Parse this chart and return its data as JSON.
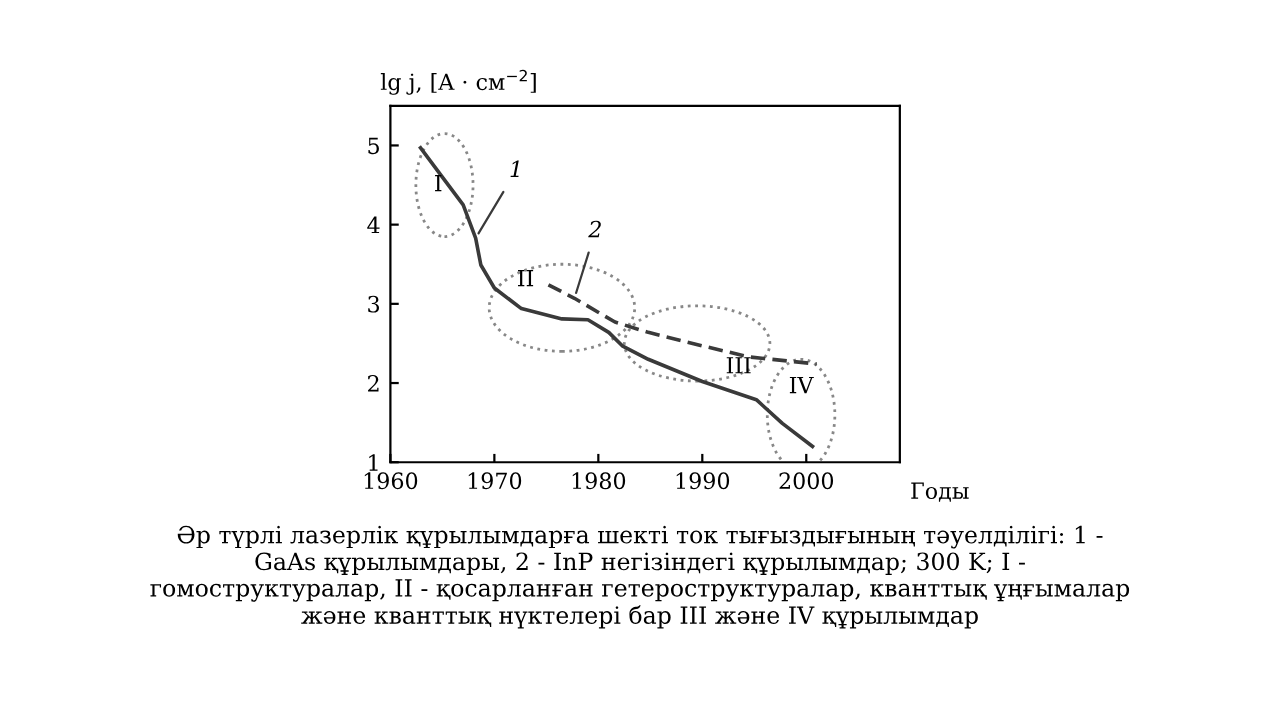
{
  "chart_data": {
    "type": "line",
    "ylabel": "lg j, [A · см$^{−2}$]",
    "xlabel": "Годы",
    "xlim": [
      1960,
      2009
    ],
    "ylim": [
      1,
      5.5
    ],
    "xticks": [
      1960,
      1970,
      1980,
      1990,
      2000
    ],
    "yticks": [
      1,
      2,
      3,
      4,
      5
    ],
    "series": [
      {
        "name": "1",
        "color": "#3a3a3a",
        "line_style": "solid",
        "x": [
          1962.9,
          1965,
          1967,
          1968.2,
          1968.7,
          1970,
          1972.6,
          1976.5,
          1979,
          1981,
          1982.3,
          1984.8,
          1990,
          1995.2,
          1997.7,
          2000.6
        ],
        "values": [
          4.97,
          4.6,
          4.25,
          3.83,
          3.49,
          3.2,
          2.94,
          2.81,
          2.8,
          2.64,
          2.47,
          2.3,
          2.02,
          1.79,
          1.49,
          1.2
        ]
      },
      {
        "name": "2",
        "color": "#3a3a3a",
        "line_style": "dashed",
        "x": [
          1975.2,
          1977.7,
          1981.6,
          1984.8,
          1990,
          1994.5,
          2001
        ],
        "values": [
          3.24,
          3.07,
          2.77,
          2.64,
          2.47,
          2.33,
          2.24
        ]
      }
    ],
    "annotations": [
      "I",
      "II",
      "III",
      "IV",
      "Әр түрлі лазерлік құрылымдарға шекті ток тығыздығының тәуелділігі: 1 -\nGaAs құрылымдары, 2 - InP негізіндегі құрылымдар; 300 K; I -\nгомоструктуралар, II - қосарланған гетероструктуралар, кванттық ұңғымалар\nжәне кванттық нүктелері бар III және IV құрылымдар"
    ],
    "grid": false,
    "legend": false
  }
}
